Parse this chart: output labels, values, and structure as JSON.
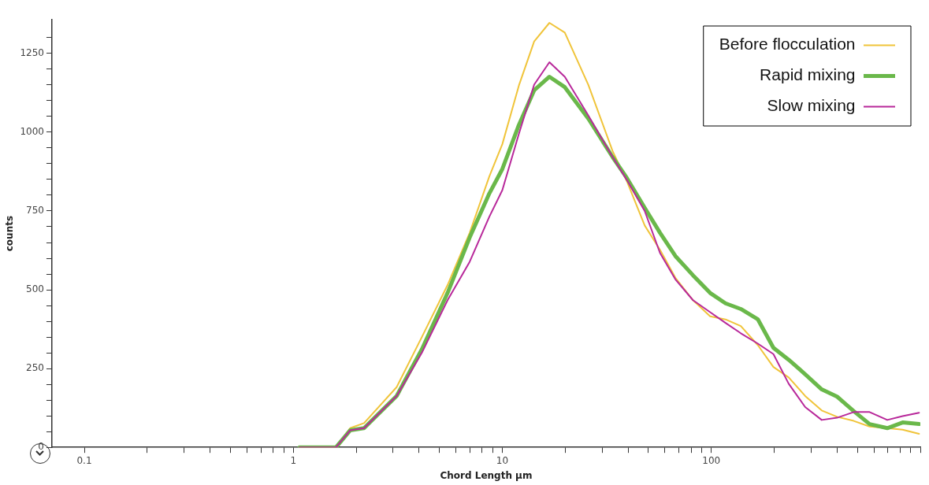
{
  "chart_data": {
    "type": "line",
    "xlabel": "Chord Length μm",
    "ylabel": "counts",
    "log": "x",
    "x": [
      1.07,
      1.6,
      1.87,
      2.18,
      3.12,
      4.12,
      5.47,
      6.98,
      8.67,
      10,
      12,
      14.2,
      16.8,
      19.9,
      25.8,
      33.7,
      39.4,
      48,
      56.8,
      67.3,
      81.7,
      98.7,
      116.9,
      138.4,
      167.1,
      198.2,
      234.5,
      281.2,
      337.4,
      399.6,
      479.9,
      571.6,
      694.8,
      822.8,
      986
    ],
    "series": [
      {
        "name": "Before flocculation",
        "color": "#f0c43a",
        "values": [
          0,
          0,
          61,
          77,
          191,
          350,
          515,
          681,
          860,
          962,
          1148,
          1288,
          1347,
          1316,
          1150,
          940,
          845,
          704,
          627,
          538,
          467,
          416,
          406,
          385,
          324,
          255,
          222,
          163,
          117,
          97,
          84,
          66,
          61,
          56,
          43
        ]
      },
      {
        "name": "Rapid mixing",
        "color": "#6ab84a",
        "values": [
          0,
          0,
          54,
          61,
          163,
          311,
          490,
          666,
          806,
          883,
          1023,
          1133,
          1176,
          1143,
          1043,
          921,
          855,
          760,
          681,
          607,
          546,
          490,
          457,
          439,
          406,
          316,
          278,
          232,
          184,
          161,
          115,
          74,
          61,
          79,
          74
        ]
      },
      {
        "name": "Slow mixing",
        "color": "#b8289a",
        "values": [
          0,
          0,
          54,
          61,
          163,
          300,
          467,
          589,
          732,
          816,
          995,
          1151,
          1222,
          1176,
          1053,
          921,
          849,
          750,
          617,
          533,
          467,
          429,
          395,
          362,
          329,
          296,
          202,
          128,
          87,
          94,
          112,
          112,
          87,
          99,
          110
        ]
      }
    ],
    "xlim": [
      0.07,
      1000
    ],
    "ylim": [
      0,
      1357
    ],
    "xticks": [
      0.1,
      {
        "value": 0.2,
        "label": null
      },
      {
        "value": 0.3,
        "label": null
      },
      {
        "value": 0.4,
        "label": null
      },
      {
        "value": 0.5,
        "label": null
      },
      {
        "value": 0.6,
        "label": null
      },
      {
        "value": 0.7,
        "label": null
      },
      {
        "value": 0.8,
        "label": null
      },
      {
        "value": 0.9,
        "label": null
      },
      1,
      {
        "value": 2,
        "label": null
      },
      {
        "value": 3,
        "label": null
      },
      {
        "value": 4,
        "label": null
      },
      {
        "value": 5,
        "label": null
      },
      {
        "value": 6,
        "label": null
      },
      {
        "value": 7,
        "label": null
      },
      {
        "value": 8,
        "label": null
      },
      {
        "value": 9,
        "label": null
      },
      10,
      {
        "value": 20,
        "label": null
      },
      {
        "value": 30,
        "label": null
      },
      {
        "value": 40,
        "label": null
      },
      {
        "value": 50,
        "label": null
      },
      {
        "value": 60,
        "label": null
      },
      {
        "value": 70,
        "label": null
      },
      {
        "value": 80,
        "label": null
      },
      {
        "value": 90,
        "label": null
      },
      100,
      {
        "value": 200,
        "label": null
      },
      {
        "value": 300,
        "label": null
      },
      {
        "value": 400,
        "label": null
      },
      {
        "value": 500,
        "label": null
      },
      {
        "value": 600,
        "label": null
      },
      {
        "value": 700,
        "label": null
      },
      {
        "value": 800,
        "label": null
      },
      {
        "value": 900,
        "label": null
      },
      {
        "value": 1000,
        "label": null
      }
    ],
    "yticks": [
      0,
      {
        "value": 50,
        "label": null
      },
      {
        "value": 100,
        "label": null
      },
      {
        "value": 150,
        "label": null
      },
      {
        "value": 200,
        "label": null
      },
      250,
      {
        "value": 300,
        "label": null
      },
      {
        "value": 350,
        "label": null
      },
      {
        "value": 400,
        "label": null
      },
      {
        "value": 450,
        "label": null
      },
      500,
      {
        "value": 550,
        "label": null
      },
      {
        "value": 600,
        "label": null
      },
      {
        "value": 650,
        "label": null
      },
      {
        "value": 700,
        "label": null
      },
      750,
      {
        "value": 800,
        "label": null
      },
      {
        "value": 850,
        "label": null
      },
      {
        "value": 900,
        "label": null
      },
      {
        "value": 950,
        "label": null
      },
      1000,
      {
        "value": 1050,
        "label": null
      },
      {
        "value": 1100,
        "label": null
      },
      {
        "value": 1150,
        "label": null
      },
      {
        "value": 1200,
        "label": null
      },
      1250,
      {
        "value": 1300,
        "label": null
      }
    ],
    "grid": false,
    "legend": "top right",
    "marker": "none",
    "line_style": "solid"
  }
}
